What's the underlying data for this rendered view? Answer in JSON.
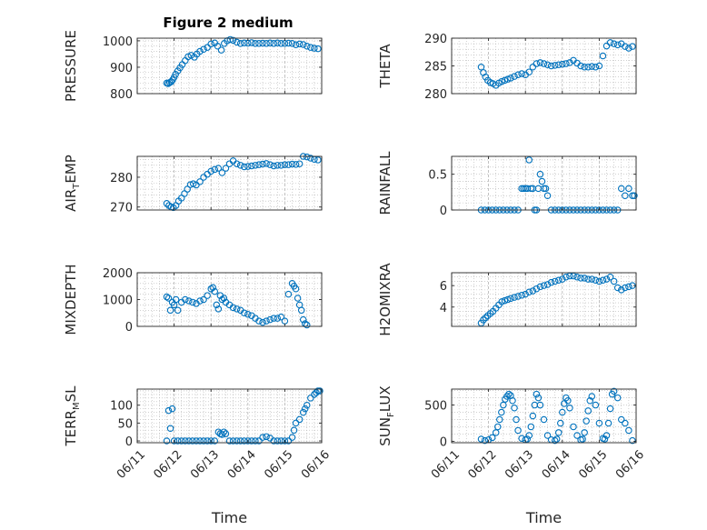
{
  "figure_title": "Figure 2 medium",
  "colors": {
    "marker": "#0072BD",
    "axis": "#262626",
    "grid": "#b3b3b3"
  },
  "x_tick_labels": [
    "06/11",
    "06/12",
    "06/13",
    "06/14",
    "06/15",
    "06/16"
  ],
  "chart_data": [
    {
      "type": "scatter",
      "id": "pressure",
      "ylabel_parts": [
        "PRESSURE"
      ],
      "ylim": [
        800,
        1010
      ],
      "yticks": [
        800,
        900,
        1000
      ],
      "xlim": [
        0,
        5
      ],
      "xlabel": "",
      "grid": true,
      "x": [
        0.8,
        0.84,
        0.88,
        0.92,
        0.96,
        1.0,
        1.04,
        1.1,
        1.16,
        1.22,
        1.3,
        1.38,
        1.46,
        1.55,
        1.62,
        1.7,
        1.8,
        1.9,
        2.0,
        2.1,
        2.18,
        2.28,
        2.36,
        2.44,
        2.52,
        2.6,
        2.7,
        2.8,
        2.9,
        3.0,
        3.1,
        3.2,
        3.3,
        3.4,
        3.5,
        3.6,
        3.7,
        3.8,
        3.9,
        4.0,
        4.1,
        4.2,
        4.3,
        4.4,
        4.5,
        4.6,
        4.7,
        4.8,
        4.9
      ],
      "y": [
        840,
        838,
        842,
        845,
        852,
        862,
        873,
        886,
        898,
        910,
        925,
        940,
        945,
        938,
        950,
        960,
        968,
        975,
        988,
        992,
        980,
        965,
        990,
        1000,
        1005,
        1002,
        995,
        990,
        992,
        991,
        993,
        990,
        990,
        991,
        990,
        992,
        990,
        992,
        990,
        990,
        991,
        990,
        985,
        988,
        986,
        980,
        975,
        972,
        970
      ]
    },
    {
      "type": "scatter",
      "id": "theta",
      "ylabel_parts": [
        "THETA"
      ],
      "ylim": [
        280,
        290
      ],
      "yticks": [
        280,
        285,
        290
      ],
      "xlim": [
        0,
        5
      ],
      "xlabel": "",
      "grid": true,
      "x": [
        0.8,
        0.86,
        0.92,
        0.98,
        1.05,
        1.12,
        1.2,
        1.28,
        1.36,
        1.44,
        1.52,
        1.6,
        1.7,
        1.8,
        1.9,
        2.0,
        2.1,
        2.2,
        2.3,
        2.4,
        2.5,
        2.6,
        2.7,
        2.8,
        2.9,
        3.0,
        3.1,
        3.2,
        3.3,
        3.4,
        3.5,
        3.6,
        3.7,
        3.8,
        3.9,
        4.0,
        4.1,
        4.2,
        4.3,
        4.4,
        4.5,
        4.6,
        4.7,
        4.8,
        4.9
      ],
      "y": [
        284.8,
        283.8,
        283.0,
        282.4,
        282.0,
        281.8,
        281.5,
        281.9,
        282.2,
        282.4,
        282.6,
        282.8,
        283.1,
        283.4,
        283.6,
        283.4,
        283.9,
        284.8,
        285.4,
        285.6,
        285.4,
        285.2,
        285.0,
        285.1,
        285.2,
        285.3,
        285.4,
        285.6,
        286.0,
        285.5,
        285.0,
        284.8,
        284.8,
        284.9,
        284.8,
        285.0,
        286.8,
        288.6,
        289.2,
        289.0,
        288.8,
        289.0,
        288.5,
        288.2,
        288.5
      ]
    },
    {
      "type": "scatter",
      "id": "air_temp",
      "ylabel_parts": [
        "AIR",
        "T",
        "EMP"
      ],
      "ylim": [
        269,
        287
      ],
      "yticks": [
        270,
        280
      ],
      "xlim": [
        0,
        5
      ],
      "xlabel": "",
      "grid": true,
      "x": [
        0.8,
        0.86,
        0.92,
        0.98,
        1.05,
        1.12,
        1.2,
        1.28,
        1.36,
        1.44,
        1.52,
        1.6,
        1.7,
        1.8,
        1.9,
        2.0,
        2.1,
        2.2,
        2.3,
        2.4,
        2.5,
        2.6,
        2.7,
        2.8,
        2.9,
        3.0,
        3.1,
        3.2,
        3.3,
        3.4,
        3.5,
        3.6,
        3.7,
        3.8,
        3.9,
        4.0,
        4.1,
        4.2,
        4.3,
        4.4,
        4.5,
        4.6,
        4.7,
        4.8,
        4.9
      ],
      "y": [
        271.2,
        270.5,
        270.0,
        269.8,
        270.5,
        272.0,
        273.0,
        274.5,
        276.0,
        277.5,
        277.8,
        277.4,
        278.5,
        280.0,
        281.0,
        282.0,
        282.6,
        283.0,
        281.5,
        283.0,
        284.5,
        285.5,
        284.5,
        284.0,
        283.5,
        283.6,
        283.8,
        284.0,
        284.2,
        284.4,
        284.6,
        284.2,
        283.8,
        284.0,
        284.0,
        284.2,
        284.2,
        284.4,
        284.3,
        284.5,
        287.0,
        286.8,
        286.4,
        286.0,
        285.8
      ]
    },
    {
      "type": "scatter",
      "id": "rainfall",
      "ylabel_parts": [
        "RAINFALL"
      ],
      "ylim": [
        0,
        0.75
      ],
      "yticks": [
        0,
        0.5
      ],
      "xlim": [
        0,
        5
      ],
      "xlabel": "",
      "grid": true,
      "x": [
        0.8,
        0.9,
        1.0,
        1.1,
        1.2,
        1.3,
        1.4,
        1.5,
        1.6,
        1.7,
        1.8,
        1.9,
        1.95,
        2.0,
        2.05,
        2.1,
        2.15,
        2.2,
        2.25,
        2.3,
        2.35,
        2.4,
        2.45,
        2.5,
        2.55,
        2.6,
        2.7,
        2.8,
        2.9,
        3.0,
        3.1,
        3.2,
        3.3,
        3.4,
        3.5,
        3.6,
        3.7,
        3.8,
        3.9,
        4.0,
        4.1,
        4.2,
        4.3,
        4.4,
        4.5,
        4.6,
        4.7,
        4.8,
        4.9,
        4.95
      ],
      "y": [
        0,
        0,
        0,
        0,
        0,
        0,
        0,
        0,
        0,
        0,
        0,
        0.3,
        0.3,
        0.3,
        0.3,
        0.7,
        0.3,
        0.3,
        0,
        0,
        0.3,
        0.5,
        0.4,
        0.3,
        0.3,
        0.2,
        0,
        0,
        0,
        0,
        0,
        0,
        0,
        0,
        0,
        0,
        0,
        0,
        0,
        0,
        0,
        0,
        0,
        0,
        0,
        0.3,
        0.2,
        0.3,
        0.2,
        0.2
      ]
    },
    {
      "type": "scatter",
      "id": "mixdepth",
      "ylabel_parts": [
        "MIXDEPTH"
      ],
      "ylim": [
        0,
        2000
      ],
      "yticks": [
        0,
        1000,
        2000
      ],
      "xlim": [
        0,
        5
      ],
      "xlabel": "",
      "grid": true,
      "x": [
        0.8,
        0.85,
        0.9,
        0.95,
        1.0,
        1.05,
        1.1,
        1.2,
        1.3,
        1.4,
        1.5,
        1.6,
        1.7,
        1.8,
        1.9,
        2.0,
        2.05,
        2.1,
        2.15,
        2.2,
        2.25,
        2.3,
        2.35,
        2.4,
        2.5,
        2.6,
        2.7,
        2.8,
        2.9,
        3.0,
        3.1,
        3.2,
        3.3,
        3.4,
        3.5,
        3.6,
        3.7,
        3.8,
        3.9,
        4.0,
        4.1,
        4.2,
        4.25,
        4.3,
        4.35,
        4.4,
        4.45,
        4.5,
        4.55,
        4.6
      ],
      "y": [
        1100,
        1050,
        600,
        900,
        800,
        1000,
        600,
        900,
        1000,
        950,
        900,
        850,
        950,
        1000,
        1150,
        1400,
        1450,
        1300,
        800,
        650,
        1150,
        1000,
        1050,
        900,
        800,
        700,
        650,
        600,
        500,
        450,
        400,
        300,
        200,
        150,
        200,
        250,
        300,
        300,
        350,
        200,
        1200,
        1600,
        1500,
        1400,
        1050,
        800,
        600,
        250,
        100,
        50
      ]
    },
    {
      "type": "scatter",
      "id": "h2omixra",
      "ylabel_parts": [
        "H2OMIXRA"
      ],
      "ylim": [
        2.2,
        7.2
      ],
      "yticks": [
        4,
        6
      ],
      "xlim": [
        0,
        5
      ],
      "xlabel": "",
      "grid": true,
      "x": [
        0.8,
        0.86,
        0.92,
        0.98,
        1.05,
        1.12,
        1.2,
        1.28,
        1.36,
        1.44,
        1.52,
        1.6,
        1.7,
        1.8,
        1.9,
        2.0,
        2.1,
        2.2,
        2.3,
        2.4,
        2.5,
        2.6,
        2.7,
        2.8,
        2.9,
        3.0,
        3.1,
        3.2,
        3.3,
        3.4,
        3.5,
        3.6,
        3.7,
        3.8,
        3.9,
        4.0,
        4.1,
        4.2,
        4.3,
        4.4,
        4.5,
        4.6,
        4.7,
        4.8,
        4.9
      ],
      "y": [
        2.5,
        2.8,
        3.0,
        3.2,
        3.4,
        3.6,
        3.9,
        4.2,
        4.5,
        4.6,
        4.7,
        4.8,
        4.9,
        5.0,
        5.1,
        5.2,
        5.4,
        5.5,
        5.7,
        5.9,
        6.0,
        6.1,
        6.3,
        6.4,
        6.5,
        6.6,
        6.8,
        6.9,
        6.9,
        6.8,
        6.7,
        6.7,
        6.6,
        6.6,
        6.5,
        6.4,
        6.5,
        6.6,
        6.8,
        6.4,
        5.8,
        5.6,
        5.8,
        5.9,
        6.0
      ]
    },
    {
      "type": "scatter",
      "id": "terr_msl",
      "ylabel_parts": [
        "TERR",
        "M",
        "SL"
      ],
      "ylim": [
        -5,
        145
      ],
      "yticks": [
        0,
        50,
        100
      ],
      "xlim": [
        0,
        5
      ],
      "xlabel": "Time",
      "grid": true,
      "x": [
        0.8,
        0.85,
        0.9,
        0.95,
        1.0,
        1.1,
        1.2,
        1.3,
        1.4,
        1.5,
        1.6,
        1.7,
        1.8,
        1.9,
        2.0,
        2.1,
        2.2,
        2.25,
        2.3,
        2.35,
        2.4,
        2.5,
        2.6,
        2.7,
        2.8,
        2.9,
        3.0,
        3.1,
        3.2,
        3.3,
        3.4,
        3.5,
        3.6,
        3.7,
        3.8,
        3.9,
        4.0,
        4.1,
        4.2,
        4.25,
        4.3,
        4.4,
        4.5,
        4.55,
        4.6,
        4.7,
        4.8,
        4.85,
        4.9,
        4.95
      ],
      "y": [
        0,
        85,
        35,
        90,
        0,
        0,
        0,
        0,
        0,
        0,
        0,
        0,
        0,
        0,
        0,
        0,
        25,
        20,
        18,
        25,
        20,
        0,
        0,
        0,
        0,
        0,
        0,
        0,
        0,
        0,
        10,
        12,
        8,
        0,
        0,
        0,
        0,
        0,
        10,
        30,
        50,
        60,
        80,
        90,
        100,
        120,
        130,
        135,
        140,
        140
      ]
    },
    {
      "type": "scatter",
      "id": "sun_flux",
      "ylabel_parts": [
        "SUN",
        "F",
        "LUX"
      ],
      "ylim": [
        -20,
        720
      ],
      "yticks": [
        0,
        500
      ],
      "xlim": [
        0,
        5
      ],
      "xlabel": "Time",
      "grid": true,
      "x": [
        0.8,
        0.9,
        1.0,
        1.1,
        1.2,
        1.25,
        1.3,
        1.35,
        1.4,
        1.45,
        1.5,
        1.55,
        1.6,
        1.65,
        1.7,
        1.75,
        1.8,
        1.9,
        2.0,
        2.05,
        2.1,
        2.15,
        2.2,
        2.25,
        2.3,
        2.35,
        2.4,
        2.5,
        2.6,
        2.7,
        2.8,
        2.85,
        2.9,
        2.95,
        3.0,
        3.05,
        3.1,
        3.15,
        3.2,
        3.3,
        3.4,
        3.5,
        3.55,
        3.6,
        3.65,
        3.7,
        3.75,
        3.8,
        3.9,
        4.0,
        4.1,
        4.15,
        4.2,
        4.25,
        4.3,
        4.35,
        4.4,
        4.5,
        4.6,
        4.7,
        4.8,
        4.9
      ],
      "y": [
        30,
        10,
        20,
        50,
        120,
        200,
        300,
        400,
        500,
        580,
        620,
        650,
        630,
        560,
        460,
        300,
        150,
        40,
        20,
        30,
        80,
        200,
        350,
        500,
        650,
        600,
        500,
        300,
        80,
        20,
        10,
        30,
        120,
        250,
        400,
        520,
        600,
        560,
        460,
        200,
        80,
        20,
        30,
        120,
        280,
        420,
        560,
        620,
        500,
        250,
        40,
        30,
        80,
        250,
        450,
        650,
        690,
        600,
        300,
        250,
        150,
        10
      ]
    }
  ]
}
